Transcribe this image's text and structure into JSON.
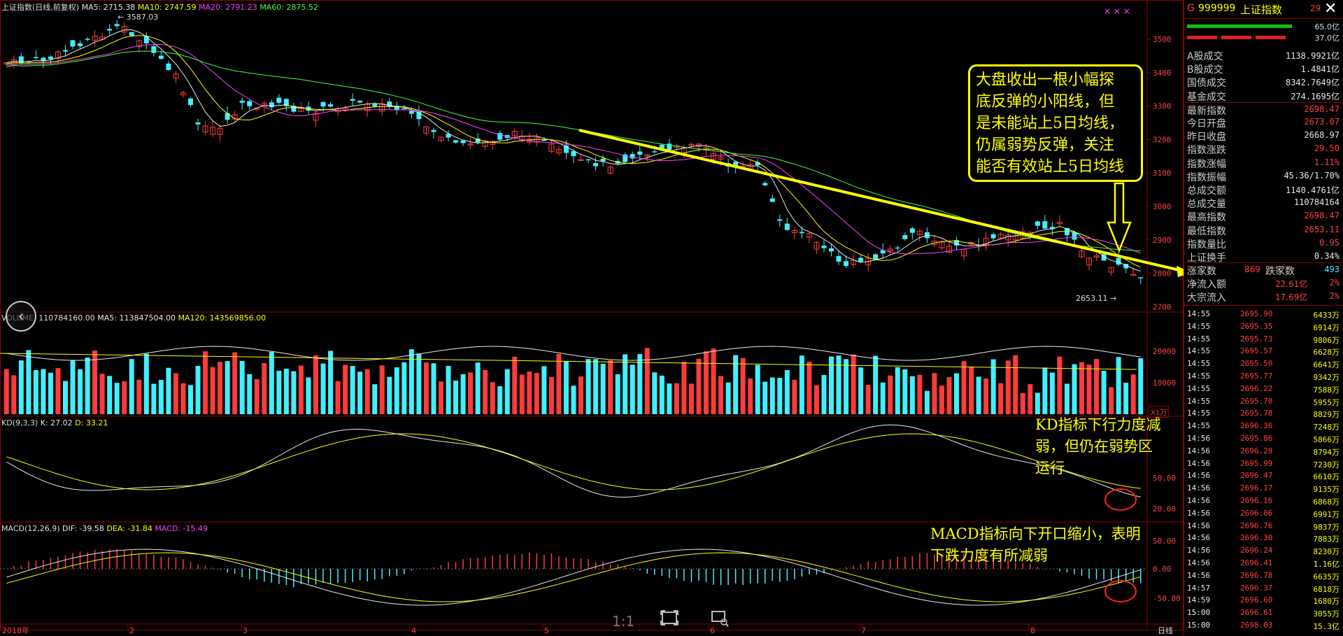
{
  "header": {
    "price_title": "上证指数(日线,前复权)",
    "ma5": "MA5: 2715.38",
    "ma10": "MA10: 2747.59",
    "ma20": "MA20: 2791.23",
    "ma60": "MA60: 2875.52",
    "volume_title": "VOLUME: 110784160.00",
    "vol_ma5": "MA5: 113847504.00",
    "vol_ma120": "MA120: 143569856.00",
    "kd_title": "KD(9,3,3)",
    "kd_k": "K: 27.02",
    "kd_d": "D: 33.21",
    "macd_title": "MACD(12,26,9)",
    "macd_dif": "DIF: -39.58",
    "macd_dea": "DEA: -31.84",
    "macd_val": "MACD: -15.49"
  },
  "annotations": {
    "high_label": "3587.03",
    "low_label": "2653.11",
    "vol_unit": "X1万",
    "main_callout": [
      "大盘收出一根小幅探",
      "底反弹的小阳线，但",
      "是未能站上5日均线，",
      "仍属弱势反弹，关注",
      "能否有效站上5日均线"
    ],
    "kd_callout": [
      "KD指标下行力度减",
      "弱，但仍在弱势区",
      "运行"
    ],
    "macd_callout": [
      "MACD指标向下开口缩小，表明",
      "下跌力度有所减弱"
    ]
  },
  "axes": {
    "price_ticks": [
      "3500",
      "3400",
      "3300",
      "3200",
      "3100",
      "3000",
      "2900",
      "2800",
      "2700"
    ],
    "volume_ticks": [
      "20000",
      "10000"
    ],
    "kd_ticks": [
      "50.00",
      "20.00"
    ],
    "macd_ticks": [
      "50.00",
      "0.00",
      "-50.00"
    ],
    "x_labels": [
      "2018年",
      "2",
      "3",
      "4",
      "5",
      "6",
      "7",
      "8"
    ],
    "period": "日线"
  },
  "bottom": {
    "zoom_label": "1:1"
  },
  "panel": {
    "code_prefix": "G",
    "code": "999999",
    "name": "上证指数",
    "header_right": "29",
    "bar_top_val": "65.0亿",
    "bar_bottom_val": "37.0亿",
    "stats": [
      {
        "label": "A股成交",
        "value": "1138.9921亿",
        "color": "white"
      },
      {
        "label": "B股成交",
        "value": "1.4841亿",
        "color": "white"
      },
      {
        "label": "国债成交",
        "value": "8342.7649亿",
        "color": "white"
      },
      {
        "label": "基金成交",
        "value": "274.1695亿",
        "color": "white"
      },
      {
        "label": "最新指数",
        "value": "2698.47",
        "color": "red"
      },
      {
        "label": "今日开盘",
        "value": "2673.07",
        "color": "red"
      },
      {
        "label": "昨日收盘",
        "value": "2668.97",
        "color": "white"
      },
      {
        "label": "指数涨跌",
        "value": "29.50",
        "color": "red"
      },
      {
        "label": "指数涨幅",
        "value": "1.11%",
        "color": "red"
      },
      {
        "label": "指数振幅",
        "value": "45.36/1.70%",
        "color": "white"
      },
      {
        "label": "总成交额",
        "value": "1140.4761亿",
        "color": "white"
      },
      {
        "label": "总成交量",
        "value": "110784164",
        "color": "white"
      },
      {
        "label": "最高指数",
        "value": "2698.47",
        "color": "red"
      },
      {
        "label": "最低指数",
        "value": "2653.11",
        "color": "red"
      },
      {
        "label": "指数量比",
        "value": "0.95",
        "color": "red"
      },
      {
        "label": "上证换手",
        "value": "0.34%",
        "color": "white"
      }
    ],
    "adv_label": "涨家数",
    "adv_value": "869",
    "dec_label": "跌家数",
    "dec_value": "493",
    "net_inflow_label": "净流入额",
    "net_inflow_value": "22.61亿",
    "net_inflow_pct": "2%",
    "block_inflow_label": "大宗流入",
    "block_inflow_value": "17.69亿",
    "block_inflow_pct": "2%",
    "ticks": [
      {
        "time": "14:55",
        "price": "2695.90",
        "vol": "6433万"
      },
      {
        "time": "14:55",
        "price": "2695.35",
        "vol": "6914万"
      },
      {
        "time": "14:55",
        "price": "2695.73",
        "vol": "9806万"
      },
      {
        "time": "14:55",
        "price": "2695.57",
        "vol": "6628万"
      },
      {
        "time": "14:55",
        "price": "2695.50",
        "vol": "6641万"
      },
      {
        "time": "14:55",
        "price": "2695.77",
        "vol": "9342万"
      },
      {
        "time": "14:55",
        "price": "2696.22",
        "vol": "7588万"
      },
      {
        "time": "14:55",
        "price": "2695.70",
        "vol": "5955万"
      },
      {
        "time": "14:55",
        "price": "2695.78",
        "vol": "8829万"
      },
      {
        "time": "14:55",
        "price": "2696.36",
        "vol": "7248万"
      },
      {
        "time": "14:56",
        "price": "2695.86",
        "vol": "5866万"
      },
      {
        "time": "14:56",
        "price": "2696.29",
        "vol": "8794万"
      },
      {
        "time": "14:56",
        "price": "2695.99",
        "vol": "7230万"
      },
      {
        "time": "14:56",
        "price": "2696.47",
        "vol": "6610万"
      },
      {
        "time": "14:56",
        "price": "2696.17",
        "vol": "9135万"
      },
      {
        "time": "14:56",
        "price": "2696.16",
        "vol": "6868万"
      },
      {
        "time": "14:56",
        "price": "2696.06",
        "vol": "6991万"
      },
      {
        "time": "14:56",
        "price": "2696.76",
        "vol": "9837万"
      },
      {
        "time": "14:56",
        "price": "2696.30",
        "vol": "7883万"
      },
      {
        "time": "14:56",
        "price": "2696.24",
        "vol": "8230万"
      },
      {
        "time": "14:56",
        "price": "2696.41",
        "vol": "1.16亿"
      },
      {
        "time": "14:56",
        "price": "2696.78",
        "vol": "6635万"
      },
      {
        "time": "14:57",
        "price": "2696.37",
        "vol": "6818万"
      },
      {
        "time": "14:59",
        "price": "2696.60",
        "vol": "1680万"
      },
      {
        "time": "15:00",
        "price": "2696.61",
        "vol": "3055万"
      },
      {
        "time": "15:00",
        "price": "2698.03",
        "vol": "15.3亿"
      }
    ]
  }
}
